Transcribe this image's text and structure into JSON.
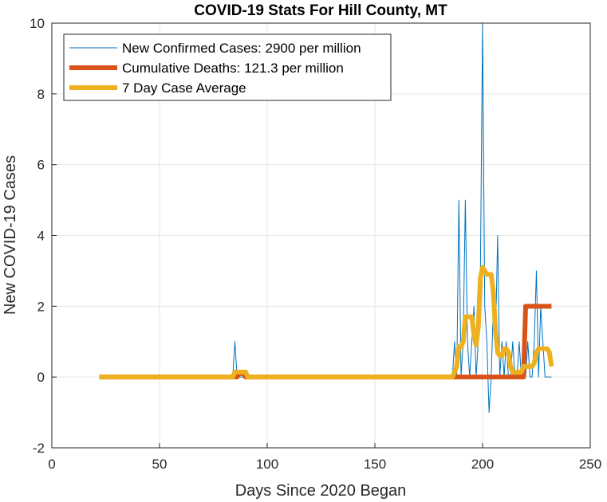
{
  "chart_data": {
    "type": "line",
    "title": "COVID-19 Stats For Hill County, MT",
    "xlabel": "Days Since 2020 Began",
    "ylabel": "New COVID-19 Cases",
    "xlim": [
      0,
      250
    ],
    "ylim": [
      -2,
      10
    ],
    "xticks": [
      0,
      50,
      100,
      150,
      200,
      250
    ],
    "yticks": [
      -2,
      0,
      2,
      4,
      6,
      8,
      10
    ],
    "grid": true,
    "legend_position": "top-left",
    "series": [
      {
        "name": "New Confirmed Cases: 2900 per million",
        "color": "#0072BD",
        "points": [
          [
            22,
            0
          ],
          [
            84,
            0
          ],
          [
            85,
            1
          ],
          [
            86,
            0
          ],
          [
            186,
            0
          ],
          [
            187,
            1
          ],
          [
            188,
            0
          ],
          [
            189,
            5
          ],
          [
            190,
            0
          ],
          [
            191,
            1
          ],
          [
            192,
            5
          ],
          [
            193,
            1
          ],
          [
            194,
            0
          ],
          [
            195,
            1
          ],
          [
            196,
            2
          ],
          [
            197,
            0
          ],
          [
            198,
            1
          ],
          [
            199,
            3
          ],
          [
            200,
            10
          ],
          [
            201,
            2
          ],
          [
            202,
            1
          ],
          [
            203,
            -1
          ],
          [
            204,
            0
          ],
          [
            205,
            2
          ],
          [
            206,
            1
          ],
          [
            207,
            4
          ],
          [
            208,
            0
          ],
          [
            209,
            1
          ],
          [
            210,
            0
          ],
          [
            211,
            1
          ],
          [
            212,
            0
          ],
          [
            213,
            0
          ],
          [
            214,
            1
          ],
          [
            215,
            0
          ],
          [
            216,
            0
          ],
          [
            217,
            1
          ],
          [
            218,
            0
          ],
          [
            219,
            1
          ],
          [
            220,
            0
          ],
          [
            221,
            1
          ],
          [
            222,
            0
          ],
          [
            223,
            0
          ],
          [
            224,
            1
          ],
          [
            225,
            3
          ],
          [
            226,
            0
          ],
          [
            227,
            2
          ],
          [
            228,
            1
          ],
          [
            229,
            0
          ],
          [
            230,
            0
          ],
          [
            231,
            0
          ],
          [
            232,
            0
          ]
        ]
      },
      {
        "name": "Cumulative Deaths: 121.3 per million",
        "color": "#D95319",
        "points": [
          [
            22,
            0
          ],
          [
            86,
            0
          ],
          [
            87,
            0.1
          ],
          [
            89,
            0.1
          ],
          [
            90,
            0
          ],
          [
            187,
            0
          ],
          [
            219,
            0
          ],
          [
            220,
            2
          ],
          [
            232,
            2
          ]
        ]
      },
      {
        "name": "7 Day Case Average",
        "color": "#EDB120",
        "points": [
          [
            22,
            0
          ],
          [
            84,
            0
          ],
          [
            85,
            0.14
          ],
          [
            90,
            0.14
          ],
          [
            91,
            0
          ],
          [
            186,
            0
          ],
          [
            187,
            0.14
          ],
          [
            188,
            0.3
          ],
          [
            189,
            0.86
          ],
          [
            190,
            0.86
          ],
          [
            191,
            1
          ],
          [
            192,
            1.7
          ],
          [
            193,
            1.7
          ],
          [
            194,
            1.7
          ],
          [
            195,
            1.7
          ],
          [
            196,
            1.2
          ],
          [
            197,
            0.9
          ],
          [
            198,
            1.4
          ],
          [
            199,
            2.8
          ],
          [
            200,
            3.1
          ],
          [
            201,
            3.0
          ],
          [
            202,
            2.9
          ],
          [
            203,
            2.9
          ],
          [
            204,
            2.9
          ],
          [
            205,
            2.4
          ],
          [
            206,
            1.3
          ],
          [
            207,
            0.7
          ],
          [
            208,
            0.6
          ],
          [
            209,
            0.6
          ],
          [
            210,
            0.8
          ],
          [
            211,
            0.8
          ],
          [
            212,
            0.7
          ],
          [
            213,
            0.3
          ],
          [
            214,
            0.14
          ],
          [
            215,
            0.14
          ],
          [
            216,
            0.14
          ],
          [
            217,
            0.14
          ],
          [
            218,
            0.14
          ],
          [
            219,
            0.3
          ],
          [
            220,
            0.3
          ],
          [
            221,
            0.3
          ],
          [
            222,
            0.3
          ],
          [
            223,
            0.3
          ],
          [
            224,
            0.4
          ],
          [
            225,
            0.7
          ],
          [
            226,
            0.8
          ],
          [
            227,
            0.8
          ],
          [
            228,
            0.8
          ],
          [
            229,
            0.8
          ],
          [
            230,
            0.8
          ],
          [
            231,
            0.7
          ],
          [
            232,
            0.3
          ]
        ]
      }
    ]
  }
}
